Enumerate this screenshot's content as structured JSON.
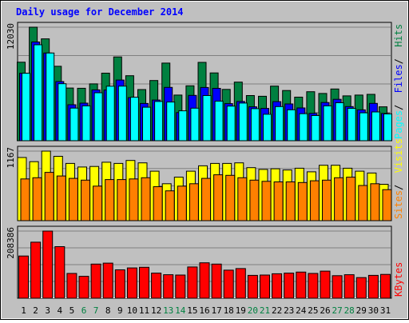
{
  "chart_data": {
    "type": "bar",
    "title": "Daily usage for December 2014",
    "categories": [
      "1",
      "2",
      "3",
      "4",
      "5",
      "6",
      "7",
      "8",
      "9",
      "10",
      "11",
      "12",
      "13",
      "14",
      "15",
      "16",
      "17",
      "18",
      "19",
      "20",
      "21",
      "22",
      "23",
      "24",
      "25",
      "26",
      "27",
      "28",
      "29",
      "30",
      "31"
    ],
    "weekend_days": [
      "6",
      "7",
      "13",
      "14",
      "20",
      "21",
      "27",
      "28"
    ],
    "panels": [
      {
        "id": "hits-files-pages",
        "max_label": "12030",
        "ymax": 12030,
        "series": [
          {
            "name": "Hits",
            "color": "#008040",
            "values": [
              8320,
              12030,
              10790,
              7890,
              5580,
              5560,
              6020,
              7160,
              8880,
              6890,
              5420,
              6380,
              8230,
              4840,
              5820,
              8300,
              7180,
              5440,
              6210,
              4790,
              4710,
              5790,
              5320,
              4620,
              5190,
              5010,
              5480,
              4750,
              4840,
              4910,
              3590
            ]
          },
          {
            "name": "Files",
            "color": "#0000ff",
            "values": [
              7150,
              10460,
              9290,
              6270,
              3810,
              3980,
              5390,
              5370,
              6430,
              4570,
              3950,
              4310,
              5650,
              2980,
              4800,
              5640,
              5550,
              3930,
              4160,
              3590,
              3420,
              4140,
              3900,
              3470,
              2900,
              4050,
              4390,
              3620,
              3270,
              3960,
              2890
            ]
          },
          {
            "name": "Pages",
            "color": "#00ffff",
            "values": [
              7150,
              10170,
              9290,
              6040,
              3460,
              3690,
              5080,
              5780,
              5790,
              4610,
              3550,
              4160,
              4100,
              3170,
              3450,
              4790,
              4190,
              3670,
              3990,
              3400,
              2800,
              3620,
              3280,
              2860,
              2670,
              3690,
              4020,
              3430,
              2960,
              3050,
              2840
            ]
          }
        ]
      },
      {
        "id": "visits-sites",
        "max_label": "1167",
        "ymax": 1167,
        "series": [
          {
            "name": "Visits",
            "color": "#ffff00",
            "values": [
              1060,
              990,
              1167,
              1080,
              960,
              900,
              910,
              980,
              960,
              1010,
              970,
              830,
              620,
              730,
              830,
              920,
              960,
              960,
              970,
              890,
              860,
              870,
              850,
              880,
              820,
              930,
              930,
              880,
              830,
              800,
              610
            ]
          },
          {
            "name": "Sites",
            "color": "#ff8000",
            "values": [
              700,
              720,
              810,
              750,
              710,
              680,
              580,
              690,
              690,
              700,
              720,
              570,
              500,
              580,
              620,
              710,
              770,
              760,
              720,
              680,
              660,
              650,
              650,
              640,
              670,
              680,
              720,
              730,
              590,
              620,
              520
            ]
          }
        ]
      },
      {
        "id": "kbytes",
        "max_label": "208386",
        "ymax": 208386,
        "series": [
          {
            "name": "KBytes",
            "color": "#ff0000",
            "values": [
              131000,
              174000,
              208386,
              160000,
              77000,
              68000,
              106000,
              109000,
              88000,
              94000,
              96000,
              78000,
              73000,
              72000,
              97000,
              110000,
              106000,
              87000,
              92000,
              71000,
              72000,
              76000,
              78000,
              81000,
              77000,
              84000,
              70000,
              73000,
              64000,
              71000,
              74000
            ]
          }
        ]
      }
    ],
    "legend_placement": "right",
    "grid": true
  },
  "colors": {
    "background": "#c0c0c0",
    "plot_background": "#c0c0c0",
    "grid": "#808080",
    "title": "#0000ff",
    "weekday_label": "#000000",
    "weekend_label": "#008040",
    "separator": "#ffffff"
  }
}
